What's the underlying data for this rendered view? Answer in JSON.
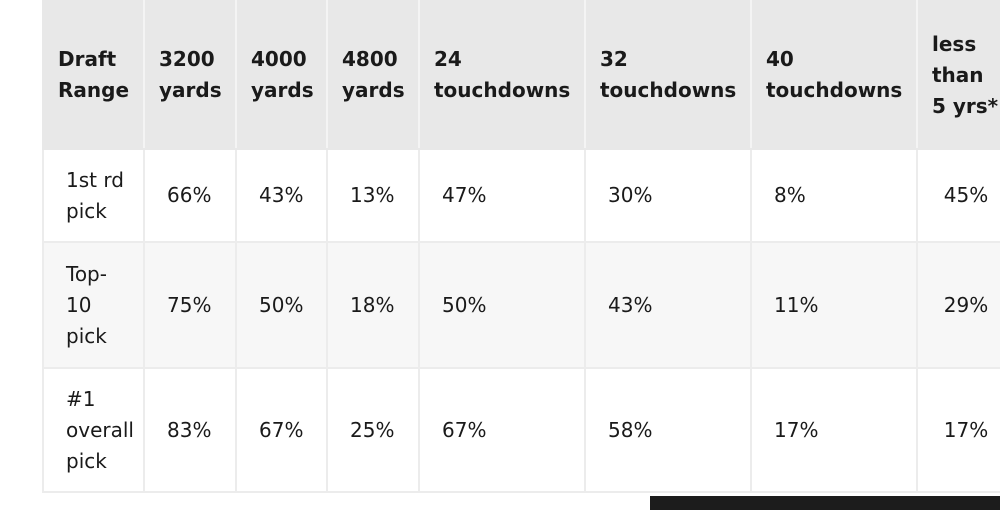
{
  "table": {
    "headers": [
      "Draft Range",
      "3200 yards",
      "4000 yards",
      "4800 yards",
      "24 touchdowns",
      "32 touchdowns",
      "40 touchdowns",
      "less than 5 yrs*"
    ],
    "rows": [
      {
        "label": "1st rd pick",
        "cells": [
          "66%",
          "43%",
          "13%",
          "47%",
          "30%",
          "8%",
          "45%"
        ]
      },
      {
        "label": "Top-10 pick",
        "cells": [
          "75%",
          "50%",
          "18%",
          "50%",
          "43%",
          "11%",
          "29%"
        ]
      },
      {
        "label": "#1 overall pick",
        "cells": [
          "83%",
          "67%",
          "25%",
          "67%",
          "58%",
          "17%",
          "17%"
        ]
      }
    ]
  }
}
